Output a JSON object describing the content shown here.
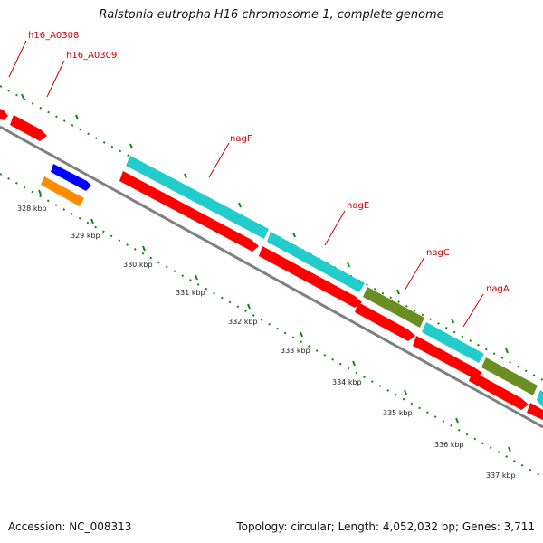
{
  "title": "Ralstonia eutropha H16 chromosome 1, complete genome",
  "footer": {
    "accession": "Accession: NC_008313",
    "topology": "Topology: circular; Length: 4,052,032 bp; Genes: 3,711"
  },
  "gene_labels": [
    "h16_A0308",
    "h16_A0309",
    "nagF",
    "nagE",
    "nagC",
    "nagA"
  ],
  "tick_labels": [
    "328 kbp",
    "329 kbp",
    "330 kbp",
    "331 kbp",
    "332 kbp",
    "333 kbp",
    "334 kbp",
    "335 kbp",
    "336 kbp",
    "337 kbp"
  ],
  "colors": {
    "cds": "#ff0000",
    "orf_cyan": "#22cccc",
    "orf_olive": "#6b8e23",
    "blue_feature": "#0000ff",
    "orange_feature": "#ff8c00",
    "backbone": "#808080",
    "ticks": "#118811",
    "label_red": "#cc0000"
  }
}
